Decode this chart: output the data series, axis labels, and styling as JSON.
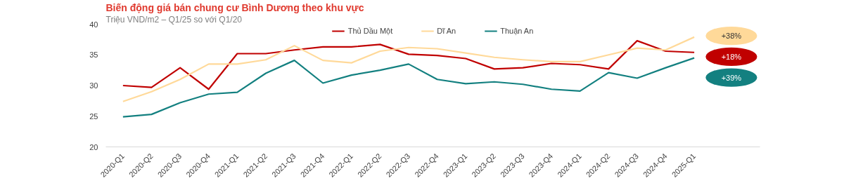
{
  "chart_data": {
    "type": "line",
    "title": "Biến động giá bán chung cư Bình Dương theo khu vực",
    "subtitle": "Triệu VND/m2 – Q1/25 so với Q1/20",
    "categories": [
      "2020-Q1",
      "2020-Q2",
      "2020-Q3",
      "2020-Q4",
      "2021-Q1",
      "2021-Q2",
      "2021-Q3",
      "2021-Q4",
      "2022-Q1",
      "2022-Q2",
      "2022-Q3",
      "2022-Q4",
      "2023-Q1",
      "2023-Q2",
      "2023-Q3",
      "2023-Q4",
      "2024-Q1",
      "2024-Q2",
      "2024-Q3",
      "2024-Q4",
      "2025-Q1"
    ],
    "series": [
      {
        "name": "Thủ Dầu Một",
        "color": "#c00000",
        "values": [
          30.0,
          29.7,
          32.9,
          29.4,
          35.2,
          35.2,
          35.8,
          36.3,
          36.3,
          36.7,
          35.1,
          34.9,
          34.4,
          32.7,
          32.9,
          33.6,
          33.4,
          32.7,
          37.3,
          35.6,
          35.4
        ]
      },
      {
        "name": "Dĩ An",
        "color": "#ffd999",
        "values": [
          27.4,
          29.0,
          31.0,
          33.5,
          33.5,
          34.2,
          36.5,
          34.1,
          33.7,
          35.6,
          36.2,
          36.0,
          35.3,
          34.6,
          34.2,
          33.9,
          33.9,
          35.0,
          36.1,
          35.8,
          37.9
        ]
      },
      {
        "name": "Thuận An",
        "color": "#138080",
        "values": [
          24.9,
          25.3,
          27.2,
          28.6,
          28.9,
          32.0,
          34.1,
          30.4,
          31.7,
          32.5,
          33.5,
          31.0,
          30.3,
          30.6,
          30.2,
          29.4,
          29.1,
          32.1,
          31.2,
          32.9,
          34.5
        ]
      }
    ],
    "annotations": [
      "+38%",
      "+18%",
      "+39%"
    ],
    "ylim": [
      20,
      40
    ],
    "yticks": [
      20,
      25,
      30,
      35,
      40
    ],
    "grid": false,
    "legend": "top",
    "line_style": "solid"
  }
}
